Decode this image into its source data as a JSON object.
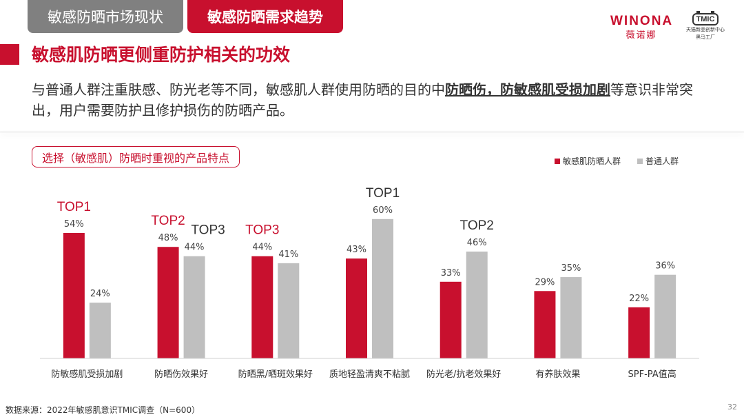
{
  "tabs": [
    {
      "label": "敏感防晒市场现状"
    },
    {
      "label": "敏感防晒需求趋势"
    }
  ],
  "logos": {
    "winona_en": "WINONA",
    "winona_cn": "薇诺娜",
    "tmic": "TMIC",
    "tmic_sub1": "天猫新品创新中心",
    "tmic_sub2": "黑马工厂"
  },
  "heading": "敏感肌防晒更侧重防护相关的功效",
  "paragraph": {
    "before": "与普通人群注重肤感、防光老等不同，敏感肌人群使用防晒的目的中",
    "highlight": "防晒伤，防敏感肌受损加剧",
    "after": "等意识非常突出，用户需要防护且修护损伤的防晒产品。"
  },
  "chart_label": "选择（敏感肌）防晒时重视的产品特点",
  "colors": {
    "sensitive": "#c8102e",
    "normal": "#bfbfbf",
    "rank_red": "#c8102e",
    "rank_dark": "#333333"
  },
  "chart_data": {
    "type": "bar",
    "categories": [
      "防敏感肌受损加剧",
      "防晒伤效果好",
      "防晒黑/晒斑效果好",
      "质地轻盈清爽不粘腻",
      "防光老/抗老效果好",
      "有养肤效果",
      "SPF-PA值高"
    ],
    "series": [
      {
        "name": "敏感肌防晒人群",
        "values": [
          54,
          48,
          44,
          43,
          33,
          29,
          22
        ],
        "color": "#c8102e",
        "labels": [
          "54%",
          "48%",
          "44%",
          "43%",
          "33%",
          "29%",
          "22%"
        ]
      },
      {
        "name": "普通人群",
        "values": [
          24,
          44,
          41,
          60,
          46,
          35,
          36
        ],
        "color": "#bfbfbf",
        "labels": [
          "24%",
          "44%",
          "41%",
          "60%",
          "46%",
          "35%",
          "36%"
        ]
      }
    ],
    "rank_annotations": [
      {
        "text": "TOP1",
        "category": 0,
        "series": 0,
        "color": "red"
      },
      {
        "text": "TOP2",
        "category": 1,
        "series": 0,
        "color": "red"
      },
      {
        "text": "TOP3",
        "category": 1,
        "series": 1,
        "color": "dark"
      },
      {
        "text": "TOP3",
        "category": 2,
        "series": 0,
        "color": "red"
      },
      {
        "text": "TOP1",
        "category": 3,
        "series": 1,
        "color": "dark"
      },
      {
        "text": "TOP2",
        "category": 4,
        "series": 1,
        "color": "dark"
      }
    ],
    "ylim": [
      0,
      70
    ],
    "grid": false,
    "legend": "top-right"
  },
  "source": "数据来源：2022年敏感肌意识TMIC调查（N=600）",
  "page_number": "32"
}
